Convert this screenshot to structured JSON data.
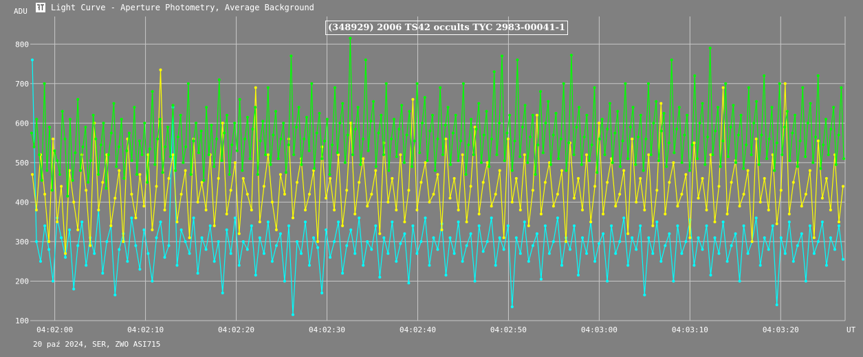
{
  "window": {
    "title": "Light Curve - Aperture Photometry, Average Background",
    "icon": "light-curve-app-icon"
  },
  "footer": {
    "caption": "20 paź 2024, SER, ZWO ASI715"
  },
  "colors": {
    "background": "#808080",
    "grid": "#c8c8c8",
    "text": "#ffffff",
    "series_green": "#00ff00",
    "series_yellow": "#ffff00",
    "series_cyan": "#00ffff"
  },
  "chart_data": {
    "type": "line",
    "title": "(348929) 2006 TS42 occults TYC 2983-00041-1",
    "ylabel": "ADU",
    "xlabel": "UT",
    "ylim": [
      100,
      870
    ],
    "xlim": [
      "04:01:57.3",
      "04:03:27.1"
    ],
    "y_ticks": [
      100,
      200,
      300,
      400,
      500,
      600,
      700,
      800
    ],
    "x_ticks": [
      "04:02:00",
      "04:02:10",
      "04:02:20",
      "04:02:30",
      "04:02:40",
      "04:02:50",
      "04:03:00",
      "04:03:10",
      "04:03:20"
    ],
    "grid": true,
    "legend": "none",
    "series": [
      {
        "color": "#00ff00",
        "marker": "dot",
        "values": [
          575,
          540,
          610,
          520,
          455,
          700,
          480,
          590,
          430,
          530,
          505,
          470,
          630,
          560,
          415,
          610,
          455,
          525,
          660,
          480,
          540,
          590,
          450,
          505,
          620,
          560,
          470,
          545,
          600,
          435,
          520,
          575,
          650,
          490,
          540,
          610,
          460,
          530,
          575,
          505,
          640,
          470,
          555,
          520,
          600,
          450,
          535,
          680,
          495,
          560,
          610,
          475,
          540,
          590,
          515,
          645,
          480,
          565,
          620,
          500,
          540,
          700,
          470,
          555,
          600,
          525,
          580,
          455,
          640,
          520,
          595,
          490,
          560,
          710,
          505,
          575,
          620,
          470,
          545,
          600,
          530,
          660,
          480,
          560,
          615,
          510,
          585,
          640,
          470,
          555,
          605,
          520,
          690,
          495,
          570,
          630,
          510,
          560,
          600,
          475,
          545,
          770,
          520,
          590,
          640,
          495,
          560,
          615,
          530,
          700,
          485,
          575,
          625,
          510,
          555,
          610,
          470,
          545,
          690,
          525,
          600,
          650,
          500,
          570,
          815,
          520,
          585,
          640,
          495,
          560,
          760,
          530,
          605,
          655,
          490,
          575,
          620,
          520,
          700,
          480,
          560,
          610,
          515,
          585,
          645,
          500,
          570,
          630,
          490,
          555,
          700,
          525,
          600,
          665,
          505,
          580,
          620,
          480,
          560,
          690,
          520,
          595,
          640,
          495,
          575,
          620,
          505,
          555,
          700,
          470,
          545,
          610,
          520,
          585,
          650,
          500,
          570,
          630,
          490,
          560,
          730,
          520,
          600,
          770,
          505,
          575,
          620,
          480,
          555,
          760,
          515,
          590,
          645,
          500,
          565,
          620,
          470,
          545,
          680,
          525,
          600,
          655,
          495,
          570,
          625,
          510,
          560,
          700,
          480,
          550,
          772,
          520,
          590,
          640,
          495,
          565,
          620,
          505,
          545,
          690,
          475,
          560,
          610,
          520,
          585,
          650,
          500,
          575,
          630,
          490,
          555,
          700,
          510,
          590,
          640,
          495,
          565,
          620,
          480,
          560,
          700,
          520,
          600,
          655,
          505,
          580,
          625,
          490,
          550,
          760,
          525,
          585,
          640,
          500,
          570,
          620,
          480,
          545,
          720,
          510,
          600,
          650,
          495,
          565,
          790,
          520,
          580,
          640,
          490,
          555,
          700,
          515,
          590,
          645,
          500,
          570,
          620,
          485,
          545,
          690,
          520,
          600,
          655,
          495,
          570,
          720,
          510,
          560,
          640,
          480,
          550,
          700,
          520,
          590,
          630,
          505,
          575,
          620,
          490,
          555,
          690,
          515,
          600,
          650,
          500,
          565,
          720,
          485,
          545,
          610,
          520,
          585,
          640,
          495,
          570,
          690,
          510
        ]
      },
      {
        "color": "#ffff00",
        "marker": "dot",
        "values": [
          470,
          380,
          520,
          420,
          300,
          560,
          350,
          440,
          270,
          480,
          400,
          330,
          520,
          430,
          290,
          600,
          380,
          450,
          520,
          340,
          410,
          480,
          300,
          560,
          420,
          360,
          470,
          390,
          520,
          330,
          440,
          735,
          380,
          460,
          520,
          350,
          420,
          480,
          310,
          560,
          400,
          450,
          380,
          520,
          340,
          460,
          600,
          370,
          430,
          500,
          320,
          460,
          420,
          380,
          690,
          350,
          440,
          520,
          400,
          330,
          470,
          420,
          560,
          360,
          450,
          510,
          380,
          420,
          480,
          300,
          540,
          410,
          460,
          380,
          520,
          340,
          430,
          600,
          370,
          450,
          510,
          390,
          420,
          480,
          320,
          550,
          400,
          460,
          380,
          520,
          350,
          430,
          660,
          380,
          450,
          500,
          400,
          420,
          470,
          330,
          560,
          410,
          460,
          380,
          520,
          350,
          440,
          590,
          370,
          450,
          500,
          390,
          420,
          480,
          310,
          560,
          400,
          460,
          380,
          520,
          340,
          430,
          620,
          370,
          450,
          500,
          390,
          420,
          480,
          300,
          550,
          410,
          460,
          380,
          520,
          350,
          440,
          600,
          370,
          450,
          510,
          390,
          420,
          480,
          320,
          560,
          400,
          460,
          380,
          520,
          340,
          430,
          650,
          370,
          450,
          500,
          390,
          420,
          470,
          310,
          550,
          410,
          460,
          380,
          520,
          350,
          440,
          690,
          370,
          450,
          505,
          390,
          420,
          480,
          300,
          560,
          400,
          460,
          380,
          520,
          345,
          430,
          700,
          370,
          450,
          500,
          390,
          420,
          480,
          310,
          555,
          410,
          460,
          380,
          520,
          350,
          440
        ]
      },
      {
        "color": "#00ffff",
        "marker": "dot",
        "values": [
          760,
          300,
          250,
          340,
          280,
          200,
          360,
          310,
          260,
          330,
          180,
          290,
          350,
          240,
          310,
          270,
          380,
          220,
          300,
          340,
          165,
          280,
          320,
          250,
          360,
          290,
          230,
          330,
          270,
          200,
          310,
          350,
          260,
          290,
          640,
          240,
          330,
          300,
          270,
          360,
          220,
          310,
          280,
          340,
          250,
          300,
          170,
          330,
          270,
          360,
          240,
          300,
          280,
          340,
          215,
          310,
          270,
          350,
          250,
          290,
          320,
          200,
          340,
          115,
          300,
          270,
          350,
          240,
          310,
          285,
          170,
          330,
          260,
          300,
          350,
          220,
          290,
          330,
          270,
          360,
          240,
          300,
          280,
          340,
          210,
          310,
          270,
          350,
          250,
          295,
          320,
          195,
          340,
          270,
          300,
          360,
          240,
          310,
          280,
          345,
          215,
          310,
          270,
          350,
          250,
          290,
          320,
          200,
          340,
          275,
          300,
          360,
          240,
          310,
          280,
          340,
          135,
          310,
          270,
          350,
          250,
          290,
          320,
          205,
          340,
          270,
          300,
          360,
          240,
          310,
          280,
          340,
          215,
          310,
          270,
          350,
          250,
          295,
          320,
          200,
          340,
          270,
          300,
          360,
          240,
          310,
          280,
          340,
          165,
          310,
          270,
          350,
          250,
          290,
          320,
          200,
          340,
          270,
          300,
          355,
          240,
          310,
          280,
          340,
          215,
          310,
          270,
          350,
          250,
          290,
          320,
          200,
          340,
          270,
          300,
          360,
          240,
          310,
          280,
          340,
          140,
          310,
          270,
          350,
          250,
          290,
          320,
          200,
          340,
          270,
          300,
          350,
          240,
          310,
          280,
          340,
          255
        ]
      }
    ]
  }
}
